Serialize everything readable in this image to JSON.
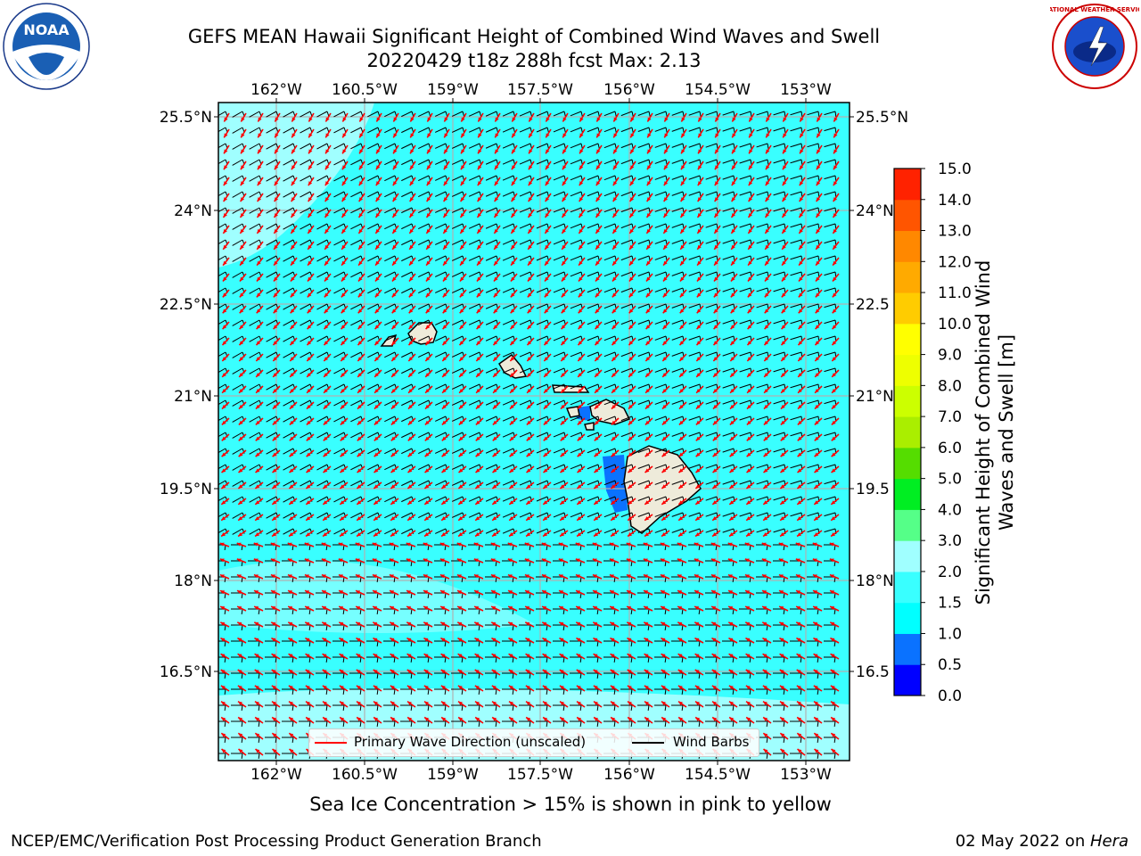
{
  "title_line1": "GEFS MEAN Hawaii Significant Height of Combined Wind Waves and Swell",
  "title_line2": "20220429 t18z 288h fcst   Max: 2.13",
  "map": {
    "lon_ticks_top": [
      "162°W",
      "160.5°W",
      "159°W",
      "157.5°W",
      "156°W",
      "154.5°W",
      "153°W"
    ],
    "lon_ticks_bottom": [
      "162°W",
      "160.5°W",
      "159°W",
      "157.5°W",
      "156°W",
      "154.5°W",
      "153°W"
    ],
    "lat_ticks_left": [
      "25.5°N",
      "24°N",
      "22.5°N",
      "21°N",
      "19.5°N",
      "18°N",
      "16.5°N"
    ],
    "lat_ticks_right": [
      "25.5°N",
      "24°N",
      "22.5",
      "21°N",
      "19.5",
      "18°N",
      "16.5"
    ],
    "ocean_color": "#39ffff",
    "light_ocean_color": "#a0ffff",
    "land_color": "#eeebda",
    "wave_arrow_color": "#ff0000",
    "wind_barb_color": "#000000"
  },
  "legend": {
    "wave_label": "Primary Wave Direction (unscaled)",
    "wind_label": "Wind Barbs"
  },
  "colorbar": {
    "title": "Significant Height of Combined Wind Waves and Swell [m]",
    "levels": [
      "0.0",
      "0.5",
      "1.0",
      "1.5",
      "2.0",
      "3.0",
      "4.0",
      "5.0",
      "6.0",
      "7.0",
      "8.0",
      "9.0",
      "10.0",
      "11.0",
      "12.0",
      "13.0",
      "14.0",
      "15.0"
    ],
    "colors": [
      "#0000ff",
      "#0a72ff",
      "#00ffff",
      "#39ffff",
      "#a0ffff",
      "#55ff88",
      "#00ee22",
      "#55dd00",
      "#aaee00",
      "#ccff00",
      "#eeff00",
      "#ffff00",
      "#ffcc00",
      "#ffaa00",
      "#ff8800",
      "#ff5500",
      "#ff2200"
    ]
  },
  "subcaption": "Sea Ice Concentration > 15% is shown in pink to yellow",
  "footer_left": "NCEP/EMC/Verification Post Processing Product Generation Branch",
  "footer_date": "02 May 2022 on ",
  "footer_machine": "Hera",
  "logo_left_text": "NOAA",
  "logo_right_text": "NATIONAL WEATHER SERVICE"
}
